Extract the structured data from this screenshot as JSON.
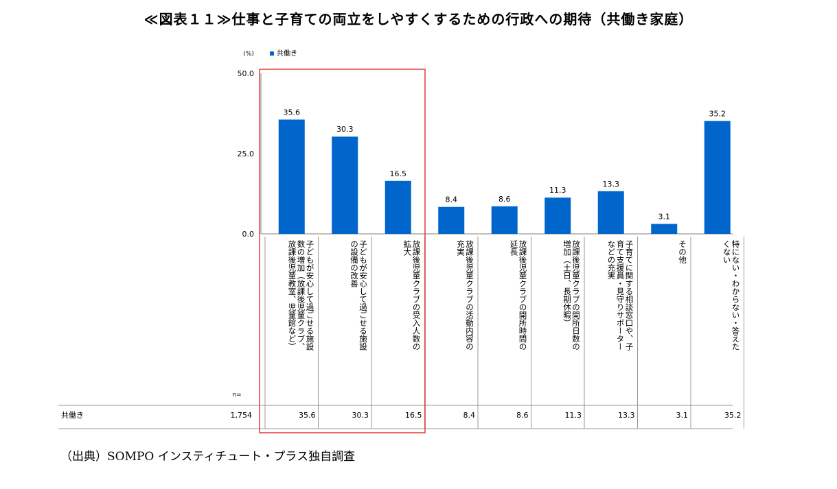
{
  "title": "≪図表１１≫仕事と子育ての両立をしやすくするための行政への期待（共働き家庭）",
  "source": "（出典）SOMPO インスティチュート・プラス独自調査",
  "colors": {
    "bar": "#0066CC",
    "highlight_box": "#E53935",
    "grid": "#808080"
  },
  "chart_data": {
    "type": "bar",
    "y_unit_label": "(%)",
    "ylim": [
      0,
      50
    ],
    "y_ticks": [
      "0.0",
      "25.0",
      "50.0"
    ],
    "legend": {
      "label": "共働き",
      "position": "top-left"
    },
    "categories": [
      "子どもが安心して過ごせる施設数の増加（放課後児童クラブ、放課後児童教室、児童館など）",
      "子どもが安心して過ごせる施設の設備の改善",
      "放課後児童クラブの受入人数の拡大",
      "放課後児童クラブの活動内容の充実",
      "放課後児童クラブの開所時間の延長",
      "放課後児童クラブの開所日数の増加（土日、長期休暇）",
      "子育てに関する相談窓口や、子育て支援員・見守りサポーターなどの充実",
      "その他",
      "特にない・わからない・答えたくない"
    ],
    "category_columns": [
      [
        "子どもが安心して過ごせる施設",
        "数の増加（放課後児童クラブ、",
        "放課後児童教室、児童館など）"
      ],
      [
        "子どもが安心して過ごせる施設",
        "の設備の改善"
      ],
      [
        "放課後児童クラブの受入人数の",
        "拡大"
      ],
      [
        "放課後児童クラブの活動内容の",
        "充実"
      ],
      [
        "放課後児童クラブの開所時間の",
        "延長"
      ],
      [
        "放課後児童クラブの開所日数の",
        "増加（土日、長期休暇）"
      ],
      [
        "子育てに関する相談窓口や、子",
        "育て支援員・見守りサポーター",
        "などの充実"
      ],
      [
        "その他"
      ],
      [
        "特にない・わからない・答えた",
        "くない"
      ]
    ],
    "series": [
      {
        "name": "共働き",
        "values": [
          35.6,
          30.3,
          16.5,
          8.4,
          8.6,
          11.3,
          13.3,
          3.1,
          35.2
        ]
      }
    ],
    "value_labels": [
      "35.6",
      "30.3",
      "16.5",
      "8.4",
      "8.6",
      "11.3",
      "13.3",
      "3.1",
      "35.2"
    ],
    "table": {
      "n_header": "n=",
      "row_label": "共働き",
      "n_value": "1,754",
      "values": [
        "35.6",
        "30.3",
        "16.5",
        "8.4",
        "8.6",
        "11.3",
        "13.3",
        "3.1",
        "35.2"
      ]
    },
    "highlighted_categories": [
      0,
      1,
      2
    ]
  }
}
